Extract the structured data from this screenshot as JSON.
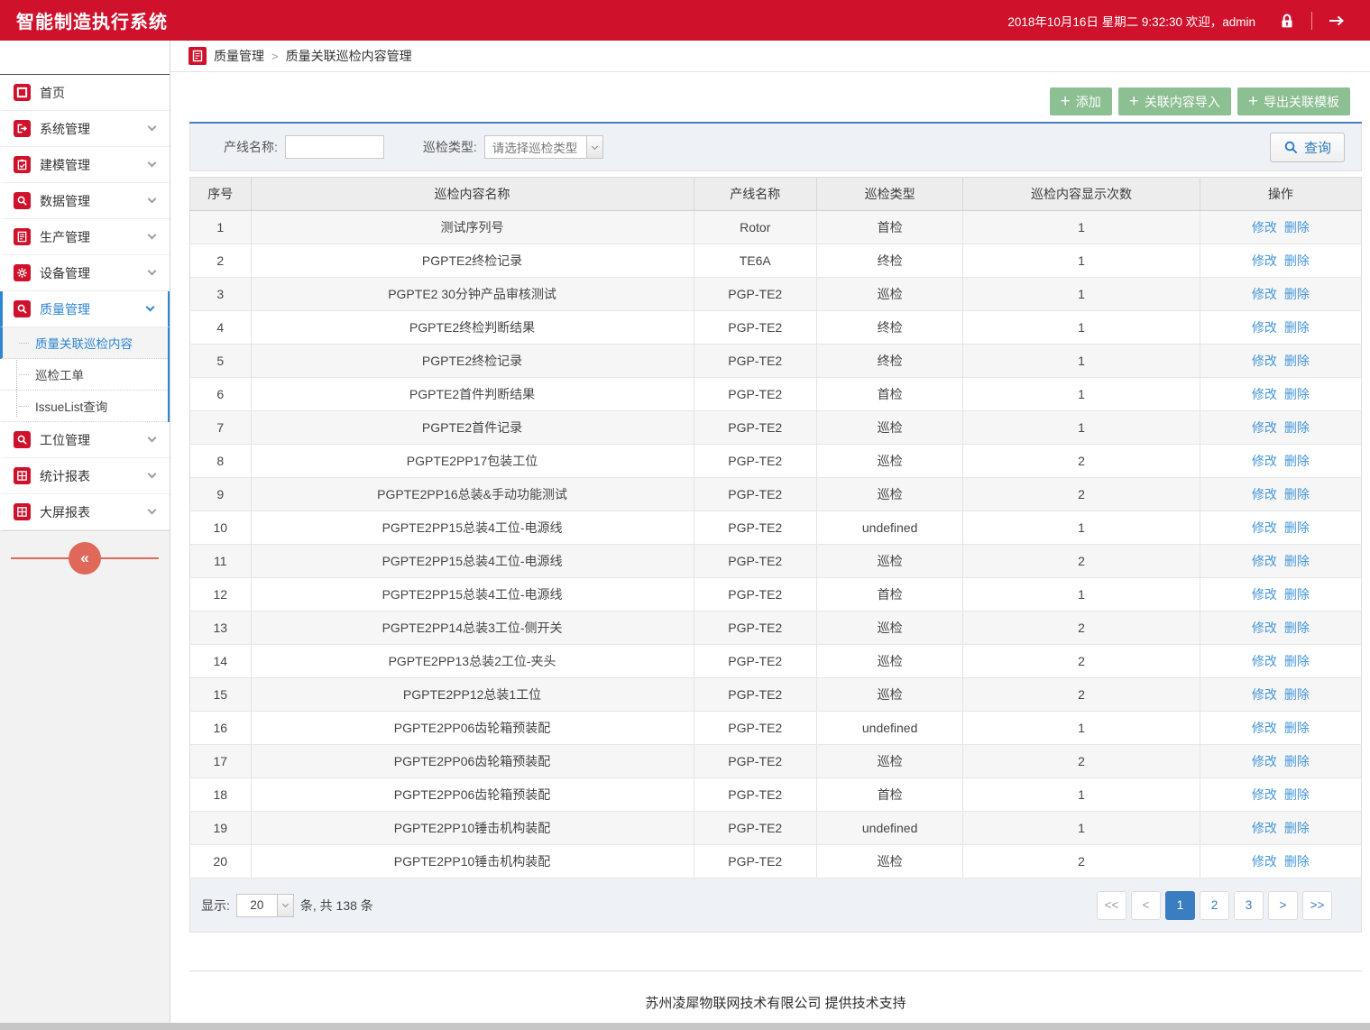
{
  "header": {
    "app_title": "智能制造执行系统",
    "datetime_welcome": "2018年10月16日 星期二 9:32:30 欢迎，admin"
  },
  "breadcrumb": {
    "section": "质量管理",
    "separator": ">",
    "page": "质量关联巡检内容管理"
  },
  "sidebar": {
    "items": [
      {
        "label": "首页",
        "icon": "home-icon",
        "expandable": false
      },
      {
        "label": "系统管理",
        "icon": "system-icon",
        "expandable": true
      },
      {
        "label": "建模管理",
        "icon": "modeling-icon",
        "expandable": true
      },
      {
        "label": "数据管理",
        "icon": "data-search-icon",
        "expandable": true
      },
      {
        "label": "生产管理",
        "icon": "production-doc-icon",
        "expandable": true
      },
      {
        "label": "设备管理",
        "icon": "equipment-gear-icon",
        "expandable": true
      },
      {
        "label": "质量管理",
        "icon": "quality-search-icon",
        "expandable": true,
        "active": true,
        "children": [
          {
            "label": "质量关联巡检内容",
            "selected": true
          },
          {
            "label": "巡检工单"
          },
          {
            "label": "IssueList查询"
          }
        ]
      },
      {
        "label": "工位管理",
        "icon": "station-search-icon",
        "expandable": true
      },
      {
        "label": "统计报表",
        "icon": "stats-report-icon",
        "expandable": true
      },
      {
        "label": "大屏报表",
        "icon": "bigscreen-report-icon",
        "expandable": true
      }
    ]
  },
  "toolbar": {
    "add_label": "添加",
    "import_label": "关联内容导入",
    "export_label": "导出关联模板"
  },
  "filters": {
    "line_name_label": "产线名称:",
    "line_name_value": "",
    "type_label": "巡检类型:",
    "type_selected": "请选择巡检类型",
    "search_label": "查询"
  },
  "table": {
    "columns": [
      "序号",
      "巡检内容名称",
      "产线名称",
      "巡检类型",
      "巡检内容显示次数",
      "操作"
    ],
    "edit_label": "修改",
    "delete_label": "删除",
    "rows": [
      {
        "no": "1",
        "name": "测试序列号",
        "line": "Rotor",
        "type": "首检",
        "count": "1"
      },
      {
        "no": "2",
        "name": "PGPTE2终检记录",
        "line": "TE6A",
        "type": "终检",
        "count": "1"
      },
      {
        "no": "3",
        "name": "PGPTE2 30分钟产品审核测试",
        "line": "PGP-TE2",
        "type": "巡检",
        "count": "1"
      },
      {
        "no": "4",
        "name": "PGPTE2终检判断结果",
        "line": "PGP-TE2",
        "type": "终检",
        "count": "1"
      },
      {
        "no": "5",
        "name": "PGPTE2终检记录",
        "line": "PGP-TE2",
        "type": "终检",
        "count": "1"
      },
      {
        "no": "6",
        "name": "PGPTE2首件判断结果",
        "line": "PGP-TE2",
        "type": "首检",
        "count": "1"
      },
      {
        "no": "7",
        "name": "PGPTE2首件记录",
        "line": "PGP-TE2",
        "type": "巡检",
        "count": "1"
      },
      {
        "no": "8",
        "name": "PGPTE2PP17包装工位",
        "line": "PGP-TE2",
        "type": "巡检",
        "count": "2"
      },
      {
        "no": "9",
        "name": "PGPTE2PP16总装&手动功能测试",
        "line": "PGP-TE2",
        "type": "巡检",
        "count": "2"
      },
      {
        "no": "10",
        "name": "PGPTE2PP15总装4工位-电源线",
        "line": "PGP-TE2",
        "type": "undefined",
        "count": "1"
      },
      {
        "no": "11",
        "name": "PGPTE2PP15总装4工位-电源线",
        "line": "PGP-TE2",
        "type": "巡检",
        "count": "2"
      },
      {
        "no": "12",
        "name": "PGPTE2PP15总装4工位-电源线",
        "line": "PGP-TE2",
        "type": "首检",
        "count": "1"
      },
      {
        "no": "13",
        "name": "PGPTE2PP14总装3工位-侧开关",
        "line": "PGP-TE2",
        "type": "巡检",
        "count": "2"
      },
      {
        "no": "14",
        "name": "PGPTE2PP13总装2工位-夹头",
        "line": "PGP-TE2",
        "type": "巡检",
        "count": "2"
      },
      {
        "no": "15",
        "name": "PGPTE2PP12总装1工位",
        "line": "PGP-TE2",
        "type": "巡检",
        "count": "2"
      },
      {
        "no": "16",
        "name": "PGPTE2PP06齿轮箱预装配",
        "line": "PGP-TE2",
        "type": "undefined",
        "count": "1"
      },
      {
        "no": "17",
        "name": "PGPTE2PP06齿轮箱预装配",
        "line": "PGP-TE2",
        "type": "巡检",
        "count": "2"
      },
      {
        "no": "18",
        "name": "PGPTE2PP06齿轮箱预装配",
        "line": "PGP-TE2",
        "type": "首检",
        "count": "1"
      },
      {
        "no": "19",
        "name": "PGPTE2PP10锤击机构装配",
        "line": "PGP-TE2",
        "type": "undefined",
        "count": "1"
      },
      {
        "no": "20",
        "name": "PGPTE2PP10锤击机构装配",
        "line": "PGP-TE2",
        "type": "巡检",
        "count": "2"
      }
    ]
  },
  "pagination": {
    "show_label": "显示:",
    "page_size": "20",
    "suffix": "条, 共 138 条",
    "buttons": [
      "<<",
      "<",
      "1",
      "2",
      "3",
      ">",
      ">>"
    ],
    "active": "1"
  },
  "footer": {
    "text": "苏州凌犀物联网技术有限公司 提供技术支持"
  },
  "colors": {
    "accent_red": "#d0112b",
    "accent_blue": "#2e86d2",
    "button_green": "#8cbf91",
    "link_blue": "#4596d8",
    "pager_active_blue": "#3a7dc0"
  }
}
